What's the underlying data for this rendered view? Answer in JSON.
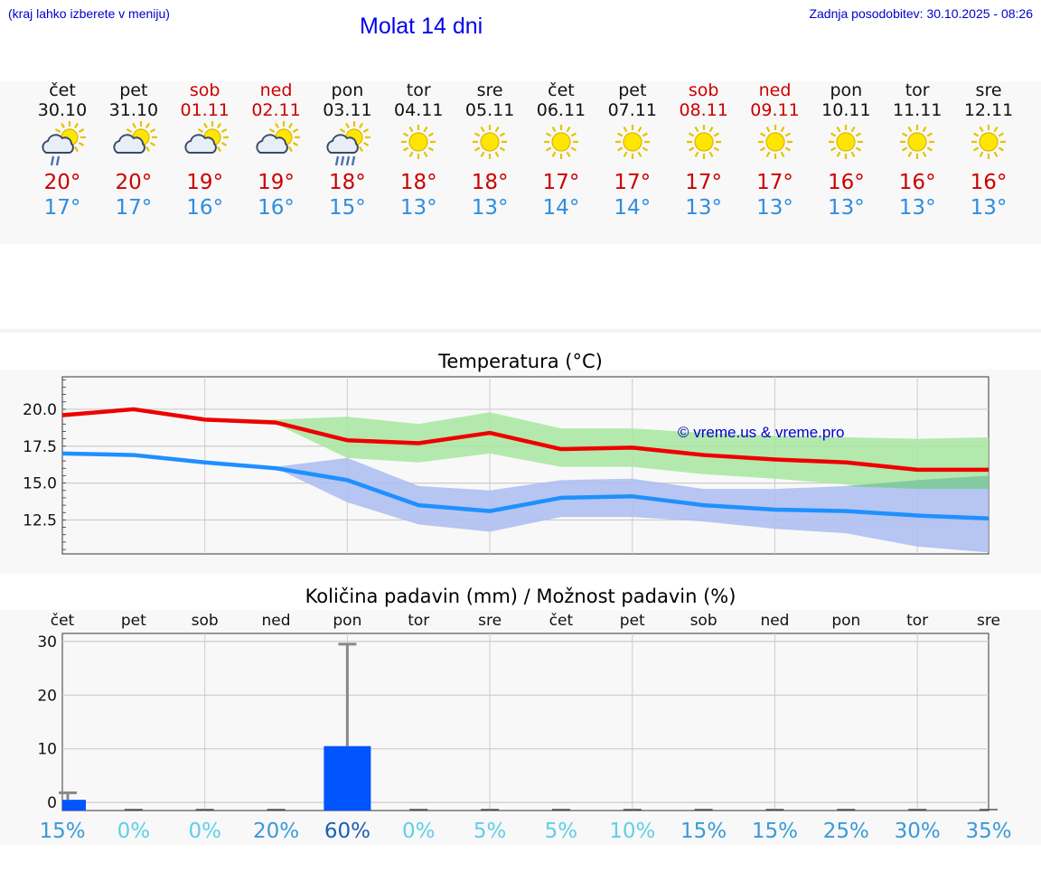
{
  "header": {
    "location_hint": "(kraj lahko izberete v meniju)",
    "title": "Molat 14 dni",
    "updated": "Zadnja posodobitev: 30.10.2025 - 08:26"
  },
  "days": [
    {
      "name": "čet",
      "date": "30.10",
      "icon": "partly-cloudy-drizzle-icon",
      "max": "20°",
      "min": "17°",
      "weekend": false
    },
    {
      "name": "pet",
      "date": "31.10",
      "icon": "partly-cloudy-icon",
      "max": "20°",
      "min": "17°",
      "weekend": false
    },
    {
      "name": "sob",
      "date": "01.11",
      "icon": "partly-cloudy-icon",
      "max": "19°",
      "min": "16°",
      "weekend": true
    },
    {
      "name": "ned",
      "date": "02.11",
      "icon": "partly-cloudy-icon",
      "max": "19°",
      "min": "16°",
      "weekend": true
    },
    {
      "name": "pon",
      "date": "03.11",
      "icon": "partly-cloudy-rain-icon",
      "max": "18°",
      "min": "15°",
      "weekend": false
    },
    {
      "name": "tor",
      "date": "04.11",
      "icon": "sun-icon",
      "max": "18°",
      "min": "13°",
      "weekend": false
    },
    {
      "name": "sre",
      "date": "05.11",
      "icon": "sun-icon",
      "max": "18°",
      "min": "13°",
      "weekend": false
    },
    {
      "name": "čet",
      "date": "06.11",
      "icon": "sun-icon",
      "max": "17°",
      "min": "14°",
      "weekend": false
    },
    {
      "name": "pet",
      "date": "07.11",
      "icon": "sun-icon",
      "max": "17°",
      "min": "14°",
      "weekend": false
    },
    {
      "name": "sob",
      "date": "08.11",
      "icon": "sun-icon",
      "max": "17°",
      "min": "13°",
      "weekend": true
    },
    {
      "name": "ned",
      "date": "09.11",
      "icon": "sun-icon",
      "max": "17°",
      "min": "13°",
      "weekend": true
    },
    {
      "name": "pon",
      "date": "10.11",
      "icon": "sun-icon",
      "max": "16°",
      "min": "13°",
      "weekend": false
    },
    {
      "name": "tor",
      "date": "11.11",
      "icon": "sun-icon",
      "max": "16°",
      "min": "13°",
      "weekend": false
    },
    {
      "name": "sre",
      "date": "12.11",
      "icon": "sun-icon",
      "max": "16°",
      "min": "13°",
      "weekend": false
    }
  ],
  "colors": {
    "max_line": "#ee0000",
    "min_line": "#1e90ff",
    "max_band": "#a8e6a0",
    "min_band": "#aebff0",
    "overlap_band": "#80c8a0",
    "bar": "#0055ff",
    "error": "#888888",
    "prob_high": "#1a5fb4",
    "prob_mid": "#3a9ad9",
    "prob_low": "#5fd0e6"
  },
  "chart_data": [
    {
      "type": "line",
      "title": "Temperatura (°C)",
      "watermark": "© vreme.us & vreme.pro",
      "x": [
        0,
        1,
        2,
        3,
        4,
        5,
        6,
        7,
        8,
        9,
        10,
        11,
        12,
        13
      ],
      "ylim": [
        10.2,
        22.2
      ],
      "yticks": [
        12.5,
        15.0,
        17.5,
        20.0
      ],
      "ytick_labels": [
        "12.5",
        "15.0",
        "17.5",
        "20.0"
      ],
      "series": [
        {
          "name": "max",
          "values": [
            19.6,
            20.0,
            19.3,
            19.1,
            17.9,
            17.7,
            18.4,
            17.3,
            17.4,
            16.9,
            16.6,
            16.4,
            15.9,
            15.9
          ]
        },
        {
          "name": "min",
          "values": [
            17.0,
            16.9,
            16.4,
            16.0,
            15.2,
            13.5,
            13.1,
            14.0,
            14.1,
            13.5,
            13.2,
            13.1,
            12.8,
            12.6
          ]
        }
      ],
      "bands": [
        {
          "name": "max_range",
          "lower": [
            19.6,
            20.0,
            19.2,
            19.0,
            16.7,
            16.4,
            17.0,
            16.1,
            16.1,
            15.6,
            15.3,
            14.9,
            14.6,
            14.6
          ],
          "upper": [
            19.6,
            20.0,
            19.4,
            19.3,
            19.5,
            19.0,
            19.8,
            18.7,
            18.7,
            18.4,
            18.2,
            18.1,
            18.0,
            18.1
          ]
        },
        {
          "name": "min_range",
          "lower": [
            17.0,
            16.9,
            16.3,
            16.0,
            13.7,
            12.2,
            11.7,
            12.7,
            12.7,
            12.4,
            11.9,
            11.6,
            10.7,
            10.3
          ],
          "upper": [
            17.0,
            16.9,
            16.5,
            16.1,
            16.7,
            14.8,
            14.5,
            15.2,
            15.3,
            14.6,
            14.6,
            14.8,
            15.2,
            15.5
          ]
        }
      ]
    },
    {
      "type": "bar",
      "title": "Količina padavin (mm) / Možnost padavin (%)",
      "categories": [
        "čet",
        "pet",
        "sob",
        "ned",
        "pon",
        "tor",
        "sre",
        "čet",
        "pet",
        "sob",
        "ned",
        "pon",
        "tor",
        "sre"
      ],
      "values": [
        0.5,
        0,
        0,
        0,
        10.5,
        0,
        0,
        0,
        0,
        0,
        0,
        0,
        0,
        0
      ],
      "error_upper": [
        1.8,
        0,
        0,
        0,
        29.5,
        0,
        0,
        0,
        0,
        0,
        0,
        0,
        0,
        0
      ],
      "ylim": [
        -1.5,
        31.5
      ],
      "yticks": [
        0,
        10,
        20,
        30
      ],
      "ytick_labels": [
        "0",
        "10",
        "20",
        "30"
      ],
      "probability": [
        "15%",
        "0%",
        "0%",
        "20%",
        "60%",
        "0%",
        "5%",
        "5%",
        "10%",
        "15%",
        "15%",
        "25%",
        "30%",
        "35%"
      ],
      "probability_values": [
        15,
        0,
        0,
        20,
        60,
        0,
        5,
        5,
        10,
        15,
        15,
        25,
        30,
        35
      ]
    }
  ]
}
